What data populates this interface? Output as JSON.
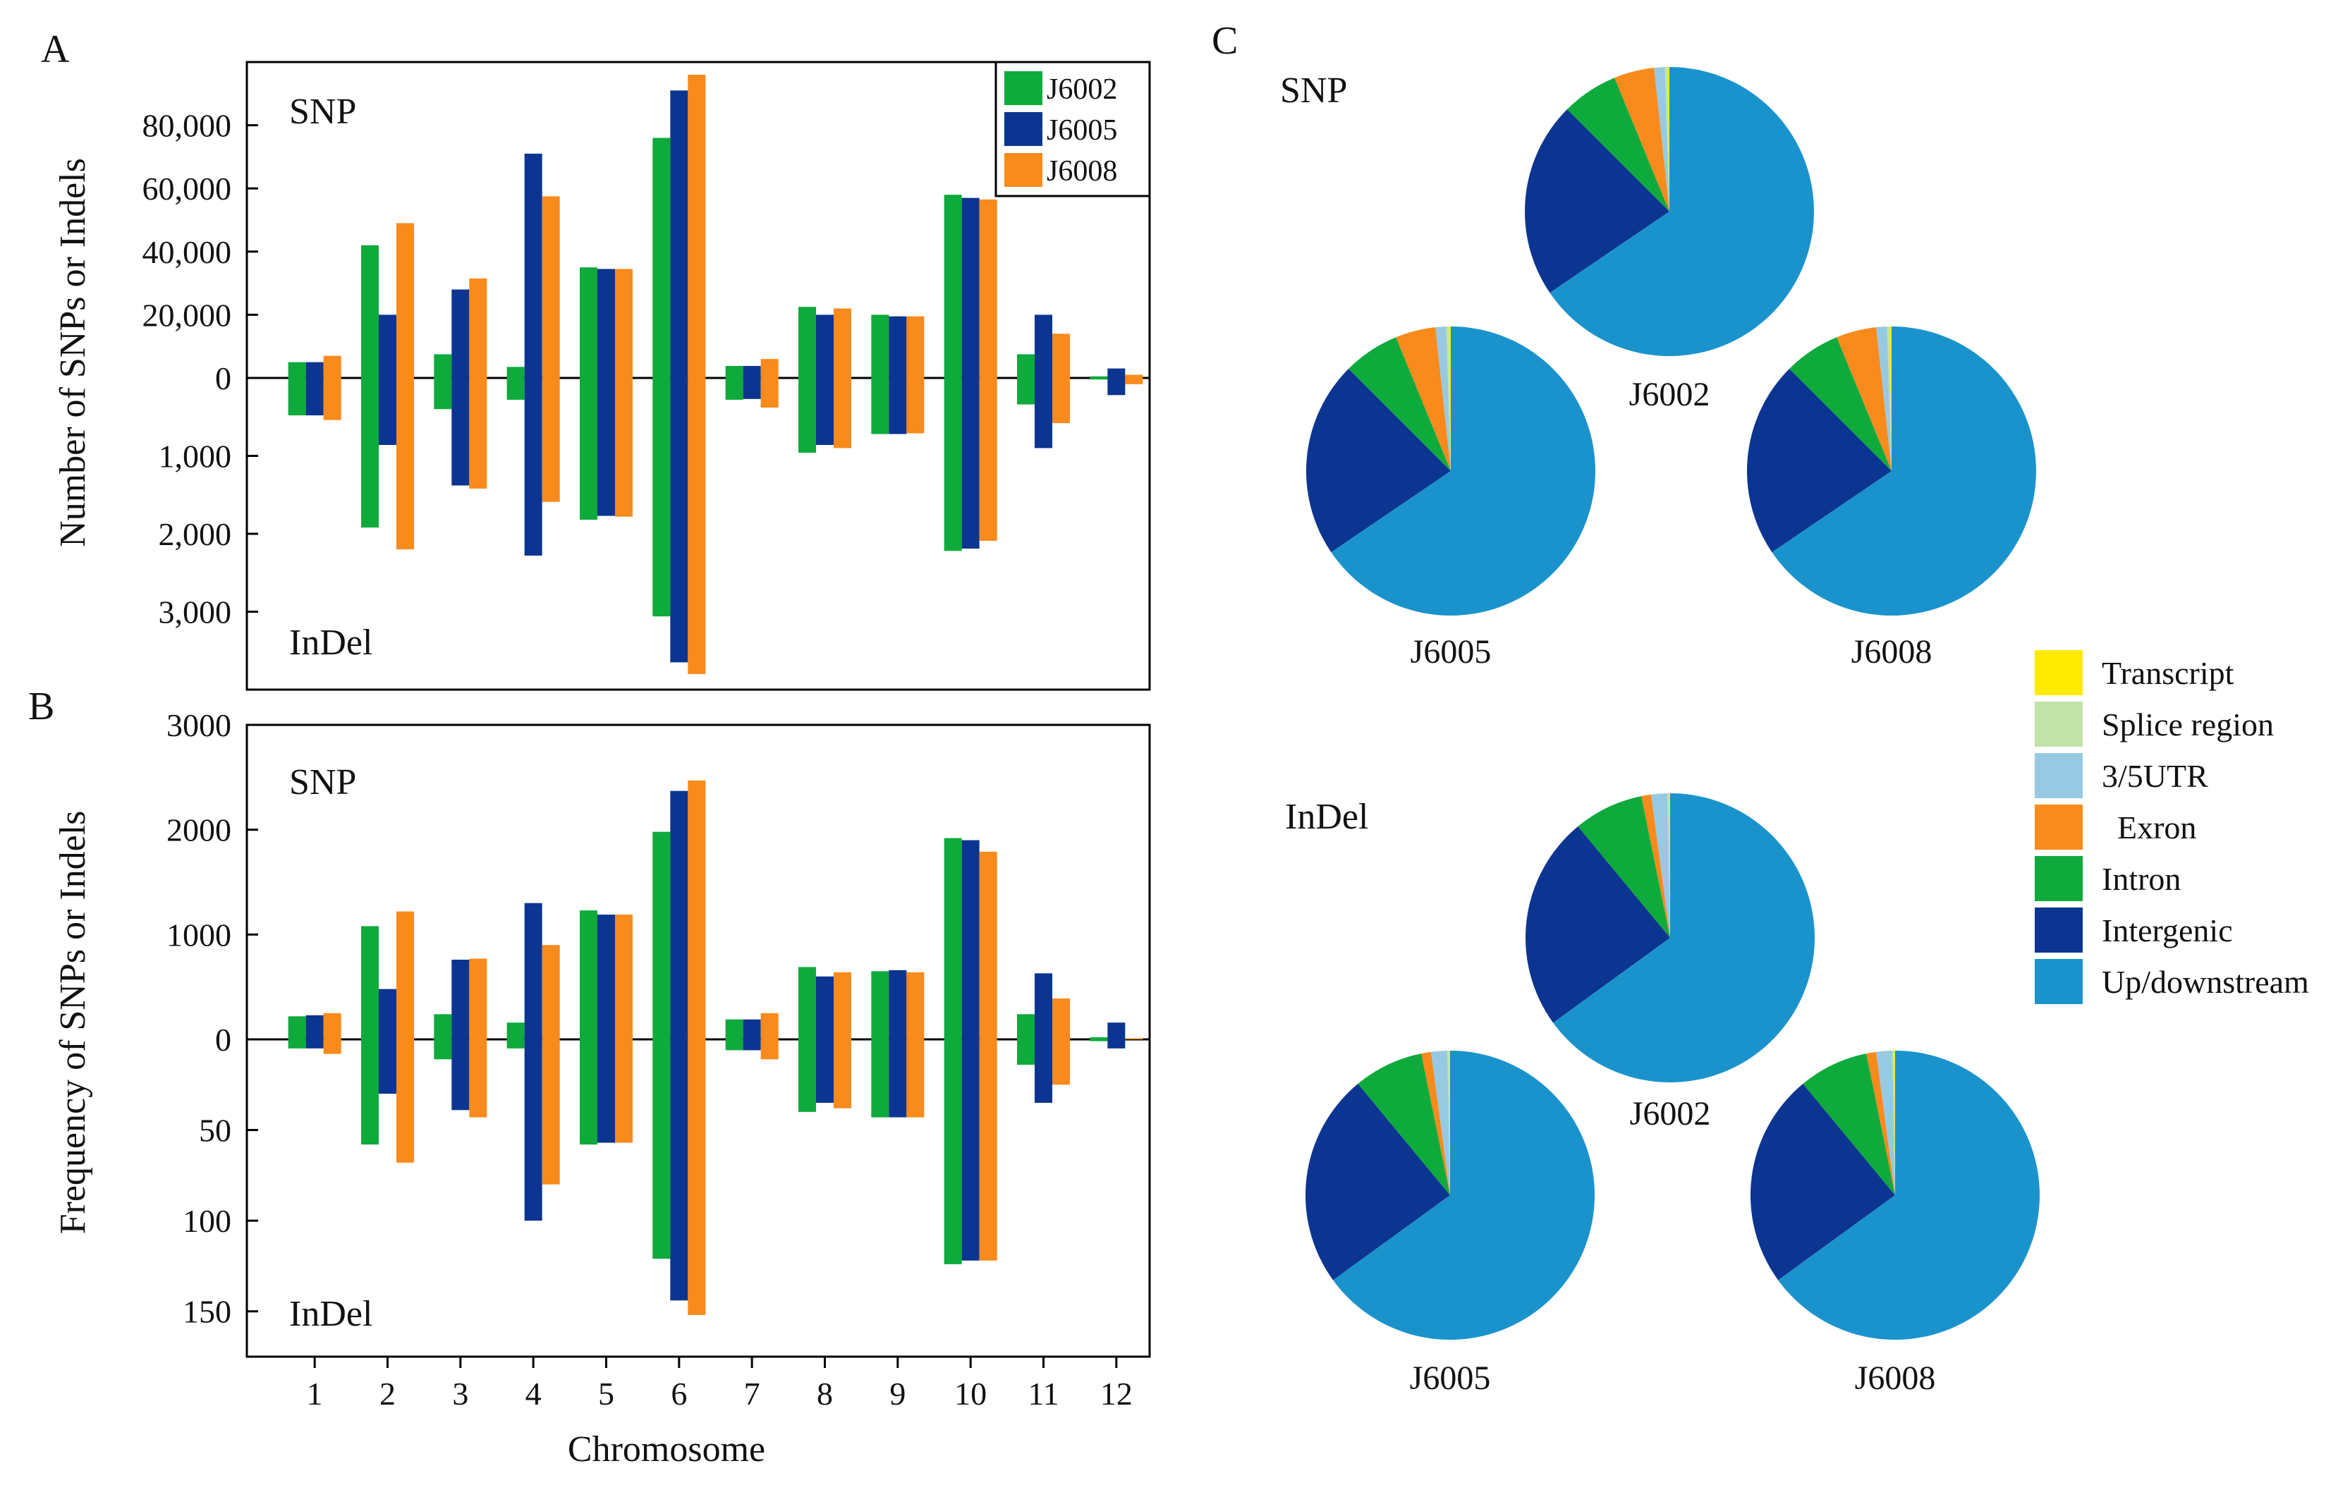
{
  "colors": {
    "J6002": "#0eaa3c",
    "J6005": "#0c3591",
    "J6008": "#f98a1c",
    "Transcript": "#ffeb00",
    "Splice region": "#c2e2a8",
    "3/5UTR": "#97cae2",
    "Exron": "#f98a1c",
    "Intron": "#0eaa3c",
    "Intergenic": "#0c3591",
    "Up/downstream": "#1a93cd"
  },
  "chart_data": [
    {
      "id": "A",
      "panel_label": "A",
      "type": "bar",
      "ylabel": "Number of SNPs or Indels",
      "xlabel": "",
      "top_label": "SNP",
      "bottom_label": "InDel",
      "categories": [
        "1",
        "2",
        "3",
        "4",
        "5",
        "6",
        "7",
        "8",
        "9",
        "10",
        "11",
        "12"
      ],
      "top_ylim": [
        0,
        100000
      ],
      "top_ticks": [
        0,
        20000,
        40000,
        60000,
        80000
      ],
      "top_tick_labels": [
        "0",
        "20,000",
        "40,000",
        "60,000",
        "80,000"
      ],
      "bottom_ylim": [
        0,
        4000
      ],
      "bottom_ticks": [
        1000,
        2000,
        3000
      ],
      "bottom_tick_labels": [
        "1,000",
        "2,000",
        "3,000"
      ],
      "legend": [
        "J6002",
        "J6005",
        "J6008"
      ],
      "series_top": [
        {
          "name": "J6002",
          "values": [
            5000,
            42000,
            7500,
            3500,
            35000,
            76000,
            3800,
            22500,
            20000,
            58000,
            7500,
            500
          ]
        },
        {
          "name": "J6005",
          "values": [
            5000,
            20000,
            28000,
            71000,
            34500,
            91000,
            3800,
            20000,
            19500,
            57000,
            20000,
            3000
          ]
        },
        {
          "name": "J6008",
          "values": [
            7000,
            49000,
            31500,
            57500,
            34500,
            96000,
            6000,
            22000,
            19500,
            56500,
            14000,
            1000
          ]
        }
      ],
      "series_bottom": [
        {
          "name": "J6002",
          "values": [
            480,
            1920,
            400,
            280,
            1820,
            3060,
            280,
            960,
            720,
            2220,
            340,
            20
          ]
        },
        {
          "name": "J6005",
          "values": [
            480,
            860,
            1380,
            2280,
            1770,
            3650,
            270,
            860,
            720,
            2190,
            900,
            220
          ]
        },
        {
          "name": "J6008",
          "values": [
            540,
            2200,
            1420,
            1590,
            1780,
            3800,
            380,
            900,
            710,
            2090,
            580,
            80
          ]
        }
      ]
    },
    {
      "id": "B",
      "panel_label": "B",
      "type": "bar",
      "ylabel": "Frequency of SNPs or Indels",
      "xlabel": "Chromosome",
      "top_label": "SNP",
      "bottom_label": "InDel",
      "categories": [
        "1",
        "2",
        "3",
        "4",
        "5",
        "6",
        "7",
        "8",
        "9",
        "10",
        "11",
        "12"
      ],
      "top_ylim": [
        0,
        3000
      ],
      "top_ticks": [
        0,
        1000,
        2000,
        3000
      ],
      "top_tick_labels": [
        "0",
        "1000",
        "2000",
        "3000"
      ],
      "bottom_ylim": [
        0,
        175
      ],
      "bottom_ticks": [
        50,
        100,
        150
      ],
      "bottom_tick_labels": [
        "50",
        "100",
        "150"
      ],
      "legend": [
        "J6002",
        "J6005",
        "J6008"
      ],
      "series_top": [
        {
          "name": "J6002",
          "values": [
            220,
            1080,
            240,
            160,
            1230,
            1980,
            190,
            690,
            650,
            1920,
            240,
            20
          ]
        },
        {
          "name": "J6005",
          "values": [
            230,
            480,
            760,
            1300,
            1190,
            2370,
            190,
            600,
            660,
            1900,
            630,
            160
          ]
        },
        {
          "name": "J6008",
          "values": [
            250,
            1220,
            770,
            900,
            1190,
            2470,
            250,
            640,
            640,
            1790,
            390,
            10
          ]
        }
      ],
      "series_bottom": [
        {
          "name": "J6002",
          "values": [
            5,
            58,
            11,
            5,
            58,
            121,
            6,
            40,
            43,
            124,
            14,
            1
          ]
        },
        {
          "name": "J6005",
          "values": [
            5,
            30,
            39,
            100,
            57,
            144,
            6,
            35,
            43,
            122,
            35,
            5
          ]
        },
        {
          "name": "J6008",
          "values": [
            8,
            68,
            43,
            80,
            57,
            152,
            11,
            38,
            43,
            122,
            25,
            0
          ]
        }
      ]
    },
    {
      "id": "C",
      "panel_label": "C",
      "type": "pie",
      "categories": [
        "Transcript",
        "Splice region",
        "3/5UTR",
        "Exron",
        "Intron",
        "Intergenic",
        "Up/downstream"
      ],
      "groups": [
        {
          "label": "SNP",
          "pies": [
            {
              "name": "J6002",
              "values": [
                0.2,
                0.3,
                1.2,
                4.5,
                6.3,
                22.0,
                65.5
              ]
            },
            {
              "name": "J6005",
              "values": [
                0.2,
                0.3,
                1.2,
                4.5,
                6.3,
                22.0,
                65.5
              ]
            },
            {
              "name": "J6008",
              "values": [
                0.2,
                0.3,
                1.2,
                4.5,
                6.3,
                22.0,
                65.5
              ]
            }
          ]
        },
        {
          "label": "InDel",
          "pies": [
            {
              "name": "J6002",
              "values": [
                0.1,
                0.2,
                1.8,
                1.1,
                7.8,
                24.0,
                65.0
              ]
            },
            {
              "name": "J6005",
              "values": [
                0.1,
                0.2,
                1.8,
                1.1,
                7.8,
                24.0,
                65.0
              ]
            },
            {
              "name": "J6008",
              "values": [
                0.1,
                0.2,
                1.8,
                1.1,
                7.8,
                24.0,
                65.0
              ]
            }
          ]
        }
      ]
    }
  ]
}
